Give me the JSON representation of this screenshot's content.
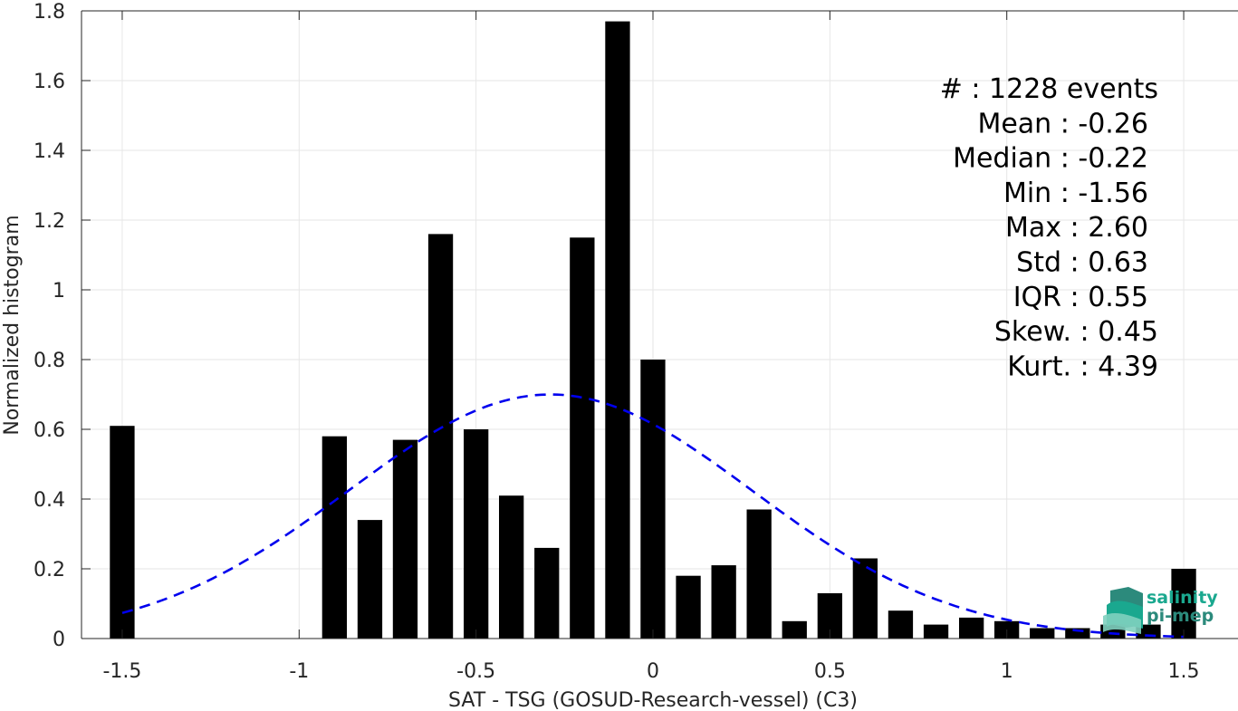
{
  "chart_data": {
    "type": "bar",
    "xlabel": "SAT - TSG (GOSUD-Research-vessel) (C3)",
    "ylabel": "Normalized histogram",
    "xlim": [
      -1.6,
      1.6
    ],
    "ylim": [
      0,
      1.8
    ],
    "xticks": [
      -1.5,
      -1,
      -0.5,
      0,
      0.5,
      1,
      1.5
    ],
    "xtick_labels": [
      "-1.5",
      "-1",
      "-0.5",
      "0",
      "0.5",
      "1",
      "1.5"
    ],
    "yticks": [
      0,
      0.2,
      0.4,
      0.6,
      0.8,
      1,
      1.2,
      1.4,
      1.6,
      1.8
    ],
    "ytick_labels": [
      "0",
      "0.2",
      "0.4",
      "0.6",
      "0.8",
      "1",
      "1.2",
      "1.4",
      "1.6",
      "1.8"
    ],
    "grid": true,
    "bar_color": "#000000",
    "bars": {
      "x": [
        -1.5,
        -0.9,
        -0.8,
        -0.7,
        -0.6,
        -0.5,
        -0.4,
        -0.3,
        -0.2,
        -0.1,
        0.0,
        0.1,
        0.2,
        0.3,
        0.4,
        0.5,
        0.6,
        0.7,
        0.8,
        0.9,
        1.0,
        1.1,
        1.2,
        1.3,
        1.4,
        1.5
      ],
      "values": [
        0.61,
        0.58,
        0.34,
        0.57,
        1.16,
        0.6,
        0.41,
        0.26,
        1.15,
        1.77,
        0.8,
        0.18,
        0.21,
        0.37,
        0.05,
        0.13,
        0.23,
        0.08,
        0.04,
        0.06,
        0.05,
        0.03,
        0.03,
        0.04,
        0.04,
        0.2
      ],
      "width": 0.07
    },
    "fit_curve": {
      "style": "dashed",
      "color": "#0000ee",
      "mean": -0.29,
      "std": 0.57,
      "x_range": [
        -1.5,
        1.5
      ]
    },
    "stats": [
      "#  : 1228 events",
      "Mean : -0.26",
      "Median : -0.22",
      "Min : -1.56",
      "Max : 2.60",
      "Std : 0.63",
      "IQR : 0.55",
      "Skew. : 0.45",
      "Kurt. : 4.39"
    ]
  },
  "logo": {
    "line1": "salinity",
    "line2": "pi-mep",
    "colors": [
      "#1aa88f",
      "#2c8a7c",
      "#7fd0bf"
    ]
  }
}
